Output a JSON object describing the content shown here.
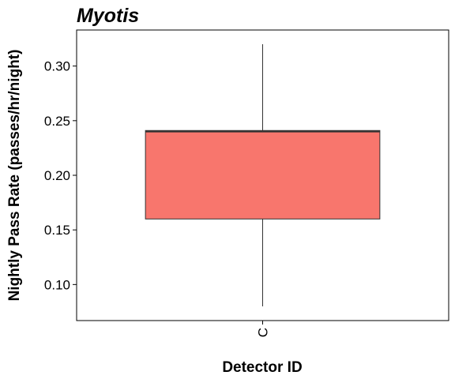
{
  "chart_data": {
    "type": "boxplot",
    "title": "Myotis",
    "xlabel": "Detector ID",
    "ylabel": "Nightly Pass Rate (passes/hr/night)",
    "categories": [
      "C"
    ],
    "boxes": [
      {
        "category": "C",
        "whisker_low": 0.08,
        "q1": 0.16,
        "median": 0.24,
        "q3": 0.241,
        "whisker_high": 0.32
      }
    ],
    "y_ticks": [
      0.1,
      0.15,
      0.2,
      0.25,
      0.3
    ],
    "y_tick_labels": [
      "0.10",
      "0.15",
      "0.20",
      "0.25",
      "0.30"
    ],
    "ylim": [
      0.067,
      0.333
    ],
    "fill_color": "#F8766D",
    "grid": false,
    "legend": "none"
  }
}
